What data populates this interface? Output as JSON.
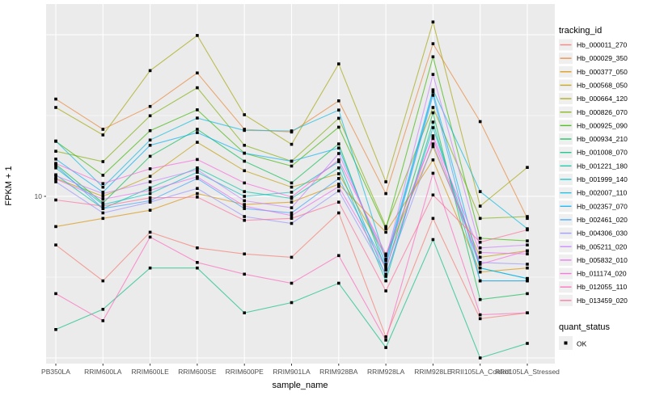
{
  "axes": {
    "x_title": "sample_name",
    "y_title": "FPKM + 1",
    "y_tick_label": "10"
  },
  "legend": {
    "tracking_title": "tracking_id",
    "quant_title": "quant_status",
    "quant_ok_label": "OK"
  },
  "colors": {
    "panel_bg": "#EBEBEB",
    "grid": "#FFFFFF",
    "tick_text": "#4D4D4D",
    "point": "#000000",
    "legend_key_bg": "#EFEFEF"
  },
  "chart_data": {
    "type": "line",
    "title": "",
    "xlabel": "sample_name",
    "ylabel": "FPKM + 1",
    "y_scale": "log10",
    "y_major_breaks": [
      1,
      10,
      100
    ],
    "y_minor_breaks": [
      3.162,
      31.62
    ],
    "y_labeled_break": 10,
    "ylim_log": [
      -0.04,
      2.19
    ],
    "grid": "white-on-gray-panel",
    "legend_position": "right",
    "line_alpha": 0.65,
    "point_shape": "filled-square",
    "point_color": "#000000",
    "point_legend": {
      "title": "quant_status",
      "label": "OK"
    },
    "categories": [
      "PB350LA",
      "RRIM600LA",
      "RRIM600LE",
      "RRIM600SE",
      "RRIM600PE",
      "RRIM901LA",
      "RRIM928BA",
      "RRIM928LA",
      "RRIM928LE",
      "RRII105LA_Control",
      "RRII105LA_Stressed"
    ],
    "series": [
      {
        "name": "Hb_000011_270",
        "color": "#F8766D",
        "values": [
          5.0,
          3.0,
          6.0,
          4.8,
          4.4,
          4.2,
          7.9,
          1.35,
          7.3,
          1.75,
          1.9
        ]
      },
      {
        "name": "Hb_000029_350",
        "color": "#EA8331",
        "values": [
          40,
          26,
          36,
          58,
          26,
          25,
          39,
          10.4,
          88,
          29,
          7.3
        ]
      },
      {
        "name": "Hb_000377_050",
        "color": "#D89000",
        "values": [
          6.5,
          7.3,
          8.2,
          10.4,
          8.9,
          9.2,
          11.9,
          6.0,
          16.8,
          3.4,
          3.6
        ]
      },
      {
        "name": "Hb_000568_050",
        "color": "#C09B00",
        "values": [
          12.9,
          10,
          13.3,
          21.6,
          14.4,
          11.4,
          13.8,
          4.3,
          20.3,
          4.2,
          4.6
        ]
      },
      {
        "name": "Hb_000664_120",
        "color": "#A3A500",
        "values": [
          35.5,
          24,
          60,
          99,
          32,
          21,
          66,
          12.3,
          120,
          8.7,
          15.1
        ]
      },
      {
        "name": "Hb_000826_070",
        "color": "#7CAE00",
        "values": [
          19,
          16.4,
          31.5,
          47,
          20.7,
          16.5,
          30.4,
          6.5,
          35.5,
          7.3,
          7.5
        ]
      },
      {
        "name": "Hb_000925_090",
        "color": "#39B600",
        "values": [
          21.9,
          13.5,
          25.5,
          34.3,
          18.5,
          15.4,
          26.8,
          6.3,
          73,
          5.5,
          5.3
        ]
      },
      {
        "name": "Hb_000934_210",
        "color": "#00BB4E",
        "values": [
          15.8,
          9.1,
          17.7,
          26,
          16.5,
          12.1,
          21.1,
          3.5,
          32.9,
          2.3,
          2.5
        ]
      },
      {
        "name": "Hb_001008_070",
        "color": "#00BF7D",
        "values": [
          1.5,
          2.0,
          3.6,
          3.6,
          1.9,
          2.2,
          2.9,
          1.16,
          5.4,
          1.0,
          1.23
        ]
      },
      {
        "name": "Hb_001221_180",
        "color": "#00C1A3",
        "values": [
          13.6,
          8.4,
          11.3,
          15,
          10.7,
          9.7,
          15,
          3.0,
          28.8,
          3.0,
          3.0
        ]
      },
      {
        "name": "Hb_001999_140",
        "color": "#00BFC4",
        "values": [
          15,
          8.9,
          10.4,
          14.1,
          10,
          10.6,
          16.4,
          3.2,
          26.6,
          3.6,
          3.1
        ]
      },
      {
        "name": "Hb_002007_110",
        "color": "#00BAE0",
        "values": [
          22,
          11.4,
          22.3,
          30.5,
          25.6,
          25.4,
          34.2,
          4.0,
          45.6,
          10.7,
          6.3
        ]
      },
      {
        "name": "Hb_002357_070",
        "color": "#00B0F6",
        "values": [
          17,
          10.6,
          20.7,
          24.8,
          18.5,
          16.5,
          19.9,
          3.8,
          44.2,
          3.6,
          3.1
        ]
      },
      {
        "name": "Hb_002461_020",
        "color": "#35A2FF",
        "values": [
          15.5,
          8.4,
          9.4,
          12.9,
          8.4,
          7.9,
          12.9,
          3.7,
          42.2,
          3.0,
          3.0
        ]
      },
      {
        "name": "Hb_004306_030",
        "color": "#9590FF",
        "values": [
          12.3,
          7.9,
          9.2,
          11.2,
          7.5,
          6.8,
          10.8,
          3.3,
          21.1,
          3.9,
          3.8
        ]
      },
      {
        "name": "Hb_005211_020",
        "color": "#C77CFF",
        "values": [
          13.4,
          10.4,
          12.3,
          14.6,
          9.4,
          8.5,
          18.4,
          4.1,
          56.8,
          4.8,
          5.0
        ]
      },
      {
        "name": "Hb_005832_010",
        "color": "#E76BF3",
        "values": [
          12.8,
          9.6,
          10.9,
          13.2,
          8.7,
          7.6,
          11.5,
          3.6,
          23.7,
          4.5,
          4.4
        ]
      },
      {
        "name": "Hb_011174_020",
        "color": "#FA62DB",
        "values": [
          16,
          12,
          14.8,
          16.9,
          12.1,
          9.9,
          16.8,
          4.4,
          22.8,
          3.8,
          4.6
        ]
      },
      {
        "name": "Hb_012055_110",
        "color": "#FF62BC",
        "values": [
          2.5,
          1.7,
          5.6,
          3.9,
          3.3,
          2.9,
          4.3,
          1.29,
          13.9,
          1.85,
          1.9
        ]
      },
      {
        "name": "Hb_013459_020",
        "color": "#FF6A98",
        "values": [
          9.5,
          8.7,
          9.8,
          9.9,
          7.1,
          7.3,
          9.2,
          2.6,
          10.2,
          5.2,
          6.2
        ]
      }
    ]
  }
}
